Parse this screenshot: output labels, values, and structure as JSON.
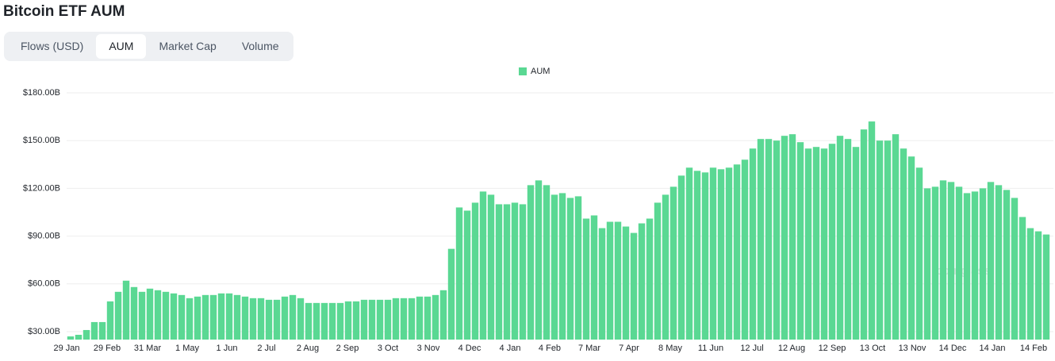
{
  "header": {
    "title": "Bitcoin ETF AUM"
  },
  "tabs": [
    "Flows (USD)",
    "AUM",
    "Market Cap",
    "Volume"
  ],
  "active_tab": 1,
  "chart_data": {
    "type": "bar",
    "watermark": "coinglass",
    "series": [
      {
        "name": "AUM",
        "color": "#5ad893",
        "values": [
          27,
          28,
          31,
          36,
          36,
          49,
          55,
          62,
          58,
          55,
          57,
          56,
          55,
          54,
          53,
          51,
          52,
          53,
          53,
          54,
          54,
          53,
          52,
          51,
          51,
          50,
          50,
          52,
          53,
          51,
          48,
          48,
          48,
          48,
          48,
          49,
          49,
          50,
          50,
          50,
          50,
          51,
          51,
          51,
          52,
          52,
          53,
          56,
          82,
          108,
          106,
          111,
          118,
          116,
          110,
          110,
          111,
          110,
          122,
          125,
          122,
          116,
          117,
          114,
          115,
          101,
          103,
          95,
          99,
          99,
          96,
          92,
          98,
          101,
          111,
          116,
          121,
          128,
          133,
          131,
          130,
          133,
          132,
          133,
          135,
          138,
          145,
          151,
          151,
          150,
          153,
          154,
          149,
          145,
          146,
          145,
          148,
          153,
          151,
          146,
          157,
          162,
          150,
          150,
          154,
          145,
          140,
          133,
          120,
          121,
          125,
          124,
          121,
          117,
          118,
          120,
          124,
          122,
          119,
          114,
          102,
          95,
          93,
          91
        ]
      }
    ],
    "xlim": [
      0,
      124
    ],
    "xticks": [
      {
        "value": 0,
        "label": "29 Jan"
      },
      {
        "value": 5.1,
        "label": "29 Feb"
      },
      {
        "value": 10.2,
        "label": "31 Mar"
      },
      {
        "value": 15.2,
        "label": "1 May"
      },
      {
        "value": 20.2,
        "label": "1 Jun"
      },
      {
        "value": 25.2,
        "label": "2 Jul"
      },
      {
        "value": 30.4,
        "label": "2 Aug"
      },
      {
        "value": 35.4,
        "label": "2 Sep"
      },
      {
        "value": 40.5,
        "label": "3 Oct"
      },
      {
        "value": 45.6,
        "label": "3 Nov"
      },
      {
        "value": 50.8,
        "label": "4 Dec"
      },
      {
        "value": 55.9,
        "label": "4 Jan"
      },
      {
        "value": 60.9,
        "label": "4 Feb"
      },
      {
        "value": 65.9,
        "label": "7 Mar"
      },
      {
        "value": 70.9,
        "label": "7 Apr"
      },
      {
        "value": 76.1,
        "label": "8 May"
      },
      {
        "value": 81.2,
        "label": "11 Jun"
      },
      {
        "value": 86.4,
        "label": "12 Jul"
      },
      {
        "value": 91.4,
        "label": "12 Aug"
      },
      {
        "value": 96.5,
        "label": "12 Sep"
      },
      {
        "value": 101.6,
        "label": "13 Oct"
      },
      {
        "value": 106.6,
        "label": "13 Nov"
      },
      {
        "value": 111.7,
        "label": "14 Dec"
      },
      {
        "value": 116.7,
        "label": "14 Jan"
      },
      {
        "value": 121.9,
        "label": "14 Feb"
      }
    ],
    "ylim": [
      25,
      180
    ],
    "yticks": [
      {
        "value": 30,
        "label": "$30.00B"
      },
      {
        "value": 60,
        "label": "$60.00B"
      },
      {
        "value": 90,
        "label": "$90.00B"
      },
      {
        "value": 120,
        "label": "$120.00B"
      },
      {
        "value": 150,
        "label": "$150.00B"
      },
      {
        "value": 180,
        "label": "$180.00B"
      }
    ],
    "grid": true,
    "legend": "top"
  }
}
